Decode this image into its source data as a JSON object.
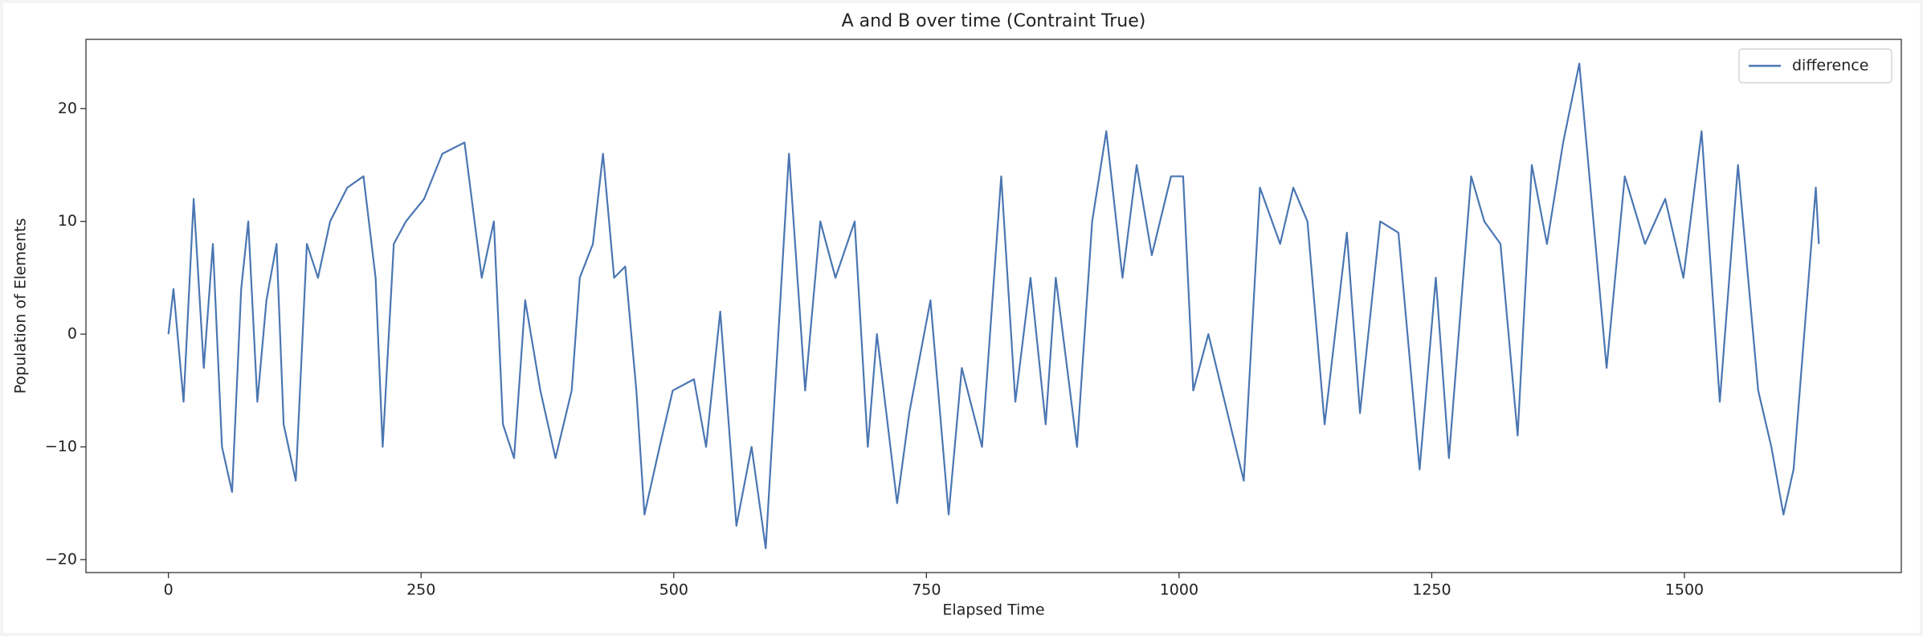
{
  "chart_data": {
    "type": "line",
    "title": "A and B over time (Contraint True)",
    "x_label": "Elapsed Time",
    "y_label": "Population of Elements",
    "x": [
      0,
      5,
      15,
      25,
      35,
      44,
      53,
      63,
      72,
      79,
      88,
      97,
      107,
      114,
      126,
      137,
      148,
      160,
      177,
      193,
      205,
      212,
      223,
      235,
      253,
      271,
      293,
      310,
      322,
      331,
      342,
      353,
      368,
      383,
      399,
      407,
      420,
      430,
      441,
      452,
      463,
      471,
      486,
      499,
      520,
      532,
      546,
      562,
      577,
      591,
      614,
      630,
      645,
      660,
      679,
      692,
      701,
      721,
      733,
      754,
      772,
      785,
      805,
      824,
      838,
      853,
      868,
      878,
      899,
      914,
      928,
      944,
      958,
      973,
      992,
      1004,
      1014,
      1029,
      1064,
      1080,
      1100,
      1113,
      1127,
      1144,
      1166,
      1179,
      1199,
      1217,
      1238,
      1254,
      1267,
      1289,
      1302,
      1318,
      1335,
      1349,
      1364,
      1380,
      1396,
      1406,
      1423,
      1441,
      1461,
      1481,
      1499,
      1517,
      1535,
      1553,
      1573,
      1586,
      1598,
      1608,
      1630,
      1633
    ],
    "series": [
      {
        "name": "difference",
        "color": "#4a76b2",
        "values": [
          0,
          4,
          -6,
          12,
          -3,
          8,
          -10,
          -14,
          4,
          10,
          -6,
          3,
          8,
          -8,
          -13,
          8,
          5,
          10,
          13,
          14,
          5,
          -10,
          8,
          10,
          12,
          16,
          17,
          5,
          10,
          -8,
          -11,
          3,
          -5,
          -11,
          -5,
          5,
          8,
          16,
          5,
          6,
          -5,
          -16,
          -10,
          -5,
          -4,
          -10,
          2,
          -17,
          -10,
          -19,
          16,
          -5,
          10,
          5,
          10,
          -10,
          0,
          -15,
          -7,
          3,
          -16,
          -3,
          -10,
          14,
          -6,
          5,
          -8,
          5,
          -10,
          10,
          18,
          5,
          15,
          7,
          14,
          14,
          -5,
          0,
          -13,
          13,
          8,
          13,
          10,
          -8,
          9,
          -7,
          10,
          9,
          -12,
          5,
          -11,
          14,
          10,
          8,
          -9,
          15,
          8,
          17,
          24,
          14,
          -3,
          14,
          8,
          12,
          5,
          18,
          -6,
          15,
          -5,
          -10,
          -16,
          -12,
          13,
          8
        ]
      }
    ],
    "xlim": [
      -81.6,
      1714.6
    ],
    "ylim": [
      -21.15,
      26.15
    ],
    "xticks": [
      0,
      250,
      500,
      750,
      1000,
      1250,
      1500
    ],
    "yticks": [
      {
        "value": -20,
        "label": "−20"
      },
      {
        "value": -10,
        "label": "−10"
      },
      0,
      10,
      20
    ],
    "legend": "upper right"
  }
}
